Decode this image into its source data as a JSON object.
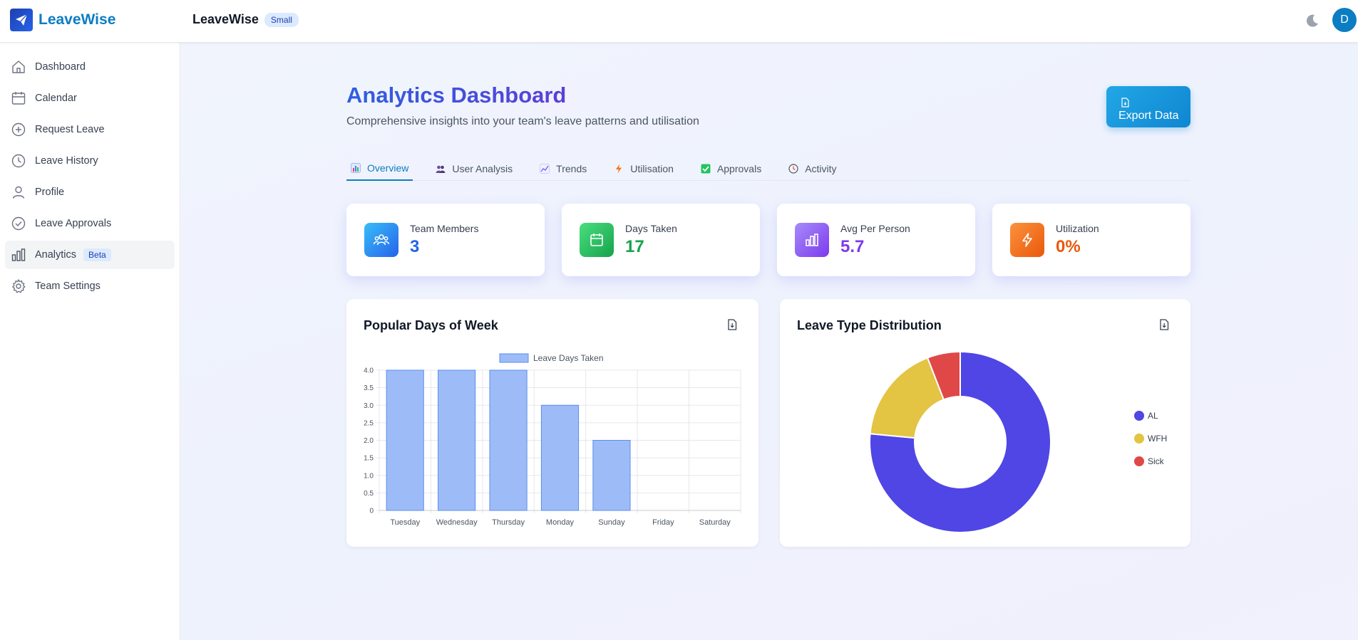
{
  "app": {
    "brand": "LeaveWise",
    "team_name": "LeaveWise",
    "team_size": "Small",
    "avatar_initial": "D"
  },
  "sidebar": {
    "items": [
      {
        "label": "Dashboard",
        "icon": "home-icon"
      },
      {
        "label": "Calendar",
        "icon": "calendar-icon"
      },
      {
        "label": "Request Leave",
        "icon": "plus-circle-icon"
      },
      {
        "label": "Leave History",
        "icon": "clock-icon"
      },
      {
        "label": "Profile",
        "icon": "user-icon"
      },
      {
        "label": "Leave Approvals",
        "icon": "check-circle-icon"
      },
      {
        "label": "Analytics",
        "icon": "bar-chart-icon",
        "badge": "Beta",
        "active": true
      },
      {
        "label": "Team Settings",
        "icon": "gear-icon"
      }
    ]
  },
  "main": {
    "title": "Analytics Dashboard",
    "subtitle": "Comprehensive insights into your team's leave patterns and utilisation",
    "export_label": "Export Data",
    "tabs": [
      {
        "label": "Overview",
        "icon": "chart-emoji-icon",
        "active": true
      },
      {
        "label": "User Analysis",
        "icon": "people-emoji-icon"
      },
      {
        "label": "Trends",
        "icon": "trend-emoji-icon"
      },
      {
        "label": "Utilisation",
        "icon": "lightning-emoji-icon"
      },
      {
        "label": "Approvals",
        "icon": "check-box-emoji-icon"
      },
      {
        "label": "Activity",
        "icon": "clock-emoji-icon"
      }
    ],
    "stats": [
      {
        "label": "Team Members",
        "value": "3",
        "color": "#2563eb",
        "icon": "users-icon"
      },
      {
        "label": "Days Taken",
        "value": "17",
        "color": "#16a34a",
        "icon": "calendar-icon"
      },
      {
        "label": "Avg Per Person",
        "value": "5.7",
        "color": "#7c3aed",
        "icon": "bar-chart-icon"
      },
      {
        "label": "Utilization",
        "value": "0%",
        "color": "#ea580c",
        "icon": "lightning-icon"
      }
    ]
  },
  "colors": {
    "accent": "#0b7dc2",
    "bar_fill": "#9dbcf7",
    "bar_stroke": "#5b8def"
  },
  "chart_data": [
    {
      "type": "bar",
      "title": "Popular Days of Week",
      "categories": [
        "Tuesday",
        "Wednesday",
        "Thursday",
        "Monday",
        "Sunday",
        "Friday",
        "Saturday"
      ],
      "series": [
        {
          "name": "Leave Days Taken",
          "values": [
            4,
            4,
            4,
            3,
            2,
            0,
            0
          ]
        }
      ],
      "yticks": [
        "0",
        "0.5",
        "1.0",
        "1.5",
        "2.0",
        "2.5",
        "3.0",
        "3.5",
        "4.0"
      ],
      "ylim": [
        0,
        4
      ],
      "grid": true,
      "legend": "top"
    },
    {
      "type": "pie",
      "title": "Leave Type Distribution",
      "labels": [
        "AL",
        "WFH",
        "Sick"
      ],
      "values": [
        13,
        3,
        1
      ],
      "colors": [
        "#4f46e5",
        "#e3c443",
        "#e04848"
      ],
      "donut": true,
      "legend": "right"
    }
  ]
}
